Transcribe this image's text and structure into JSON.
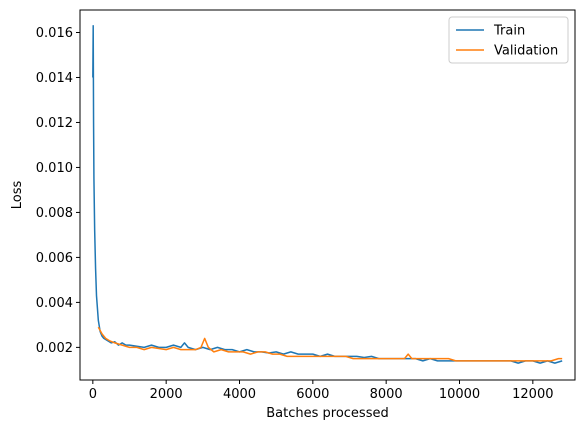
{
  "chart_data": {
    "type": "line",
    "xlabel": "Batches processed",
    "ylabel": "Loss",
    "xlim": [
      -350,
      13150
    ],
    "ylim": [
      0.00055,
      0.017
    ],
    "xticks": [
      0,
      2000,
      4000,
      6000,
      8000,
      10000,
      12000
    ],
    "xtick_labels": [
      "0",
      "2000",
      "4000",
      "6000",
      "8000",
      "10000",
      "12000"
    ],
    "yticks": [
      0.002,
      0.004,
      0.006,
      0.008,
      0.01,
      0.012,
      0.014,
      0.016
    ],
    "ytick_labels": [
      "0.002",
      "0.004",
      "0.006",
      "0.008",
      "0.010",
      "0.012",
      "0.014",
      "0.016"
    ],
    "legend_position": "top-right",
    "grid": false,
    "series": [
      {
        "name": "Train",
        "color": "#1f77b4",
        "x": [
          0,
          10,
          20,
          30,
          50,
          75,
          100,
          150,
          200,
          250,
          300,
          400,
          500,
          600,
          700,
          800,
          900,
          1000,
          1200,
          1400,
          1600,
          1800,
          2000,
          2200,
          2400,
          2500,
          2600,
          2800,
          3000,
          3200,
          3400,
          3600,
          3800,
          4000,
          4200,
          4400,
          4600,
          4800,
          5000,
          5200,
          5400,
          5600,
          5800,
          6000,
          6200,
          6400,
          6600,
          6800,
          7000,
          7200,
          7400,
          7600,
          7800,
          8000,
          8200,
          8400,
          8600,
          8800,
          9000,
          9200,
          9400,
          9600,
          9800,
          10000,
          10200,
          10400,
          10600,
          10800,
          11000,
          11200,
          11400,
          11600,
          11800,
          12000,
          12200,
          12400,
          12600,
          12800
        ],
        "y": [
          0.014,
          0.0163,
          0.012,
          0.0095,
          0.0072,
          0.0055,
          0.0043,
          0.0032,
          0.0027,
          0.0025,
          0.0024,
          0.0023,
          0.0022,
          0.00225,
          0.0021,
          0.0022,
          0.0021,
          0.0021,
          0.00205,
          0.002,
          0.0021,
          0.002,
          0.002,
          0.0021,
          0.002,
          0.0022,
          0.002,
          0.0019,
          0.002,
          0.0019,
          0.002,
          0.0019,
          0.0019,
          0.0018,
          0.0019,
          0.0018,
          0.0018,
          0.00175,
          0.0018,
          0.0017,
          0.0018,
          0.0017,
          0.0017,
          0.0017,
          0.0016,
          0.0017,
          0.0016,
          0.0016,
          0.0016,
          0.0016,
          0.00155,
          0.0016,
          0.0015,
          0.0015,
          0.0015,
          0.0015,
          0.0015,
          0.0015,
          0.0014,
          0.0015,
          0.0014,
          0.0014,
          0.0014,
          0.0014,
          0.0014,
          0.0014,
          0.0014,
          0.0014,
          0.0014,
          0.0014,
          0.0014,
          0.0013,
          0.0014,
          0.0014,
          0.0013,
          0.0014,
          0.0013,
          0.0014
        ]
      },
      {
        "name": "Validation",
        "color": "#ff7f0e",
        "x": [
          150,
          250,
          350,
          450,
          600,
          800,
          1000,
          1200,
          1400,
          1600,
          1800,
          2000,
          2200,
          2400,
          2600,
          2800,
          2950,
          3050,
          3150,
          3300,
          3500,
          3700,
          3900,
          4100,
          4300,
          4500,
          4700,
          4900,
          5100,
          5300,
          5500,
          5700,
          5900,
          6100,
          6300,
          6500,
          6700,
          6900,
          7100,
          7300,
          7500,
          7700,
          7900,
          8100,
          8300,
          8500,
          8600,
          8700,
          8900,
          9100,
          9300,
          9500,
          9700,
          9900,
          10100,
          10300,
          10500,
          10700,
          10900,
          11100,
          11300,
          11500,
          11700,
          11900,
          12100,
          12300,
          12500,
          12700,
          12800
        ],
        "y": [
          0.0029,
          0.0026,
          0.0024,
          0.0023,
          0.0022,
          0.0021,
          0.002,
          0.002,
          0.0019,
          0.002,
          0.00195,
          0.0019,
          0.002,
          0.0019,
          0.0019,
          0.0019,
          0.002,
          0.0024,
          0.002,
          0.0018,
          0.0019,
          0.0018,
          0.0018,
          0.0018,
          0.0017,
          0.0018,
          0.0018,
          0.0017,
          0.0017,
          0.0016,
          0.0016,
          0.0016,
          0.0016,
          0.0016,
          0.0016,
          0.0016,
          0.0016,
          0.0016,
          0.0015,
          0.0015,
          0.0015,
          0.0015,
          0.0015,
          0.0015,
          0.0015,
          0.0015,
          0.0017,
          0.0015,
          0.0015,
          0.0015,
          0.0015,
          0.0015,
          0.0015,
          0.0014,
          0.0014,
          0.0014,
          0.0014,
          0.0014,
          0.0014,
          0.0014,
          0.0014,
          0.0014,
          0.0014,
          0.0014,
          0.0014,
          0.0014,
          0.0014,
          0.0015,
          0.0015
        ]
      }
    ]
  }
}
